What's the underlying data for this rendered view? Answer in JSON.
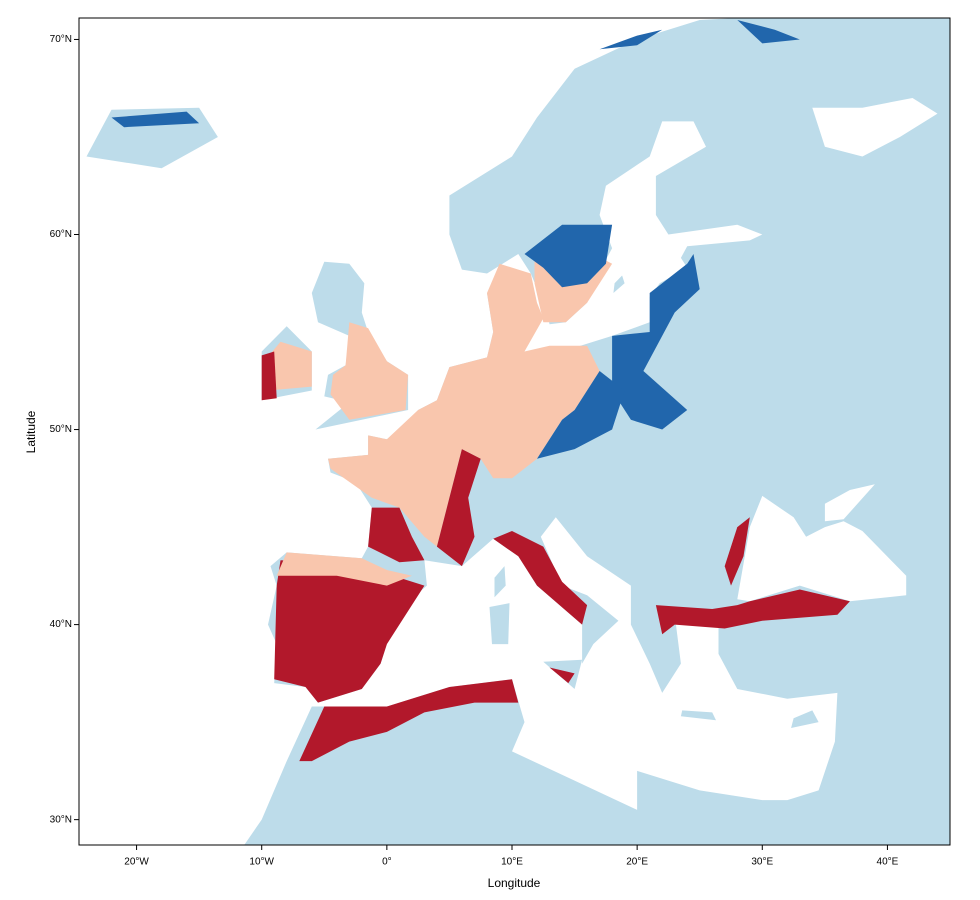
{
  "chart_data": {
    "type": "map",
    "xlabel": "Longitude",
    "ylabel": "Latitude",
    "xlim": [
      -24.6,
      45
    ],
    "ylim": [
      28.7,
      71.1
    ],
    "xticks": [
      {
        "value": -20,
        "label": "20°W"
      },
      {
        "value": -10,
        "label": "10°W"
      },
      {
        "value": 0,
        "label": "0°"
      },
      {
        "value": 10,
        "label": "10°E"
      },
      {
        "value": 20,
        "label": "20°E"
      },
      {
        "value": 30,
        "label": "30°E"
      },
      {
        "value": 40,
        "label": "40°E"
      }
    ],
    "yticks": [
      {
        "value": 30,
        "label": "30°N"
      },
      {
        "value": 40,
        "label": "40°N"
      },
      {
        "value": 50,
        "label": "50°N"
      },
      {
        "value": 60,
        "label": "60°N"
      },
      {
        "value": 70,
        "label": "70°N"
      }
    ]
  }
}
